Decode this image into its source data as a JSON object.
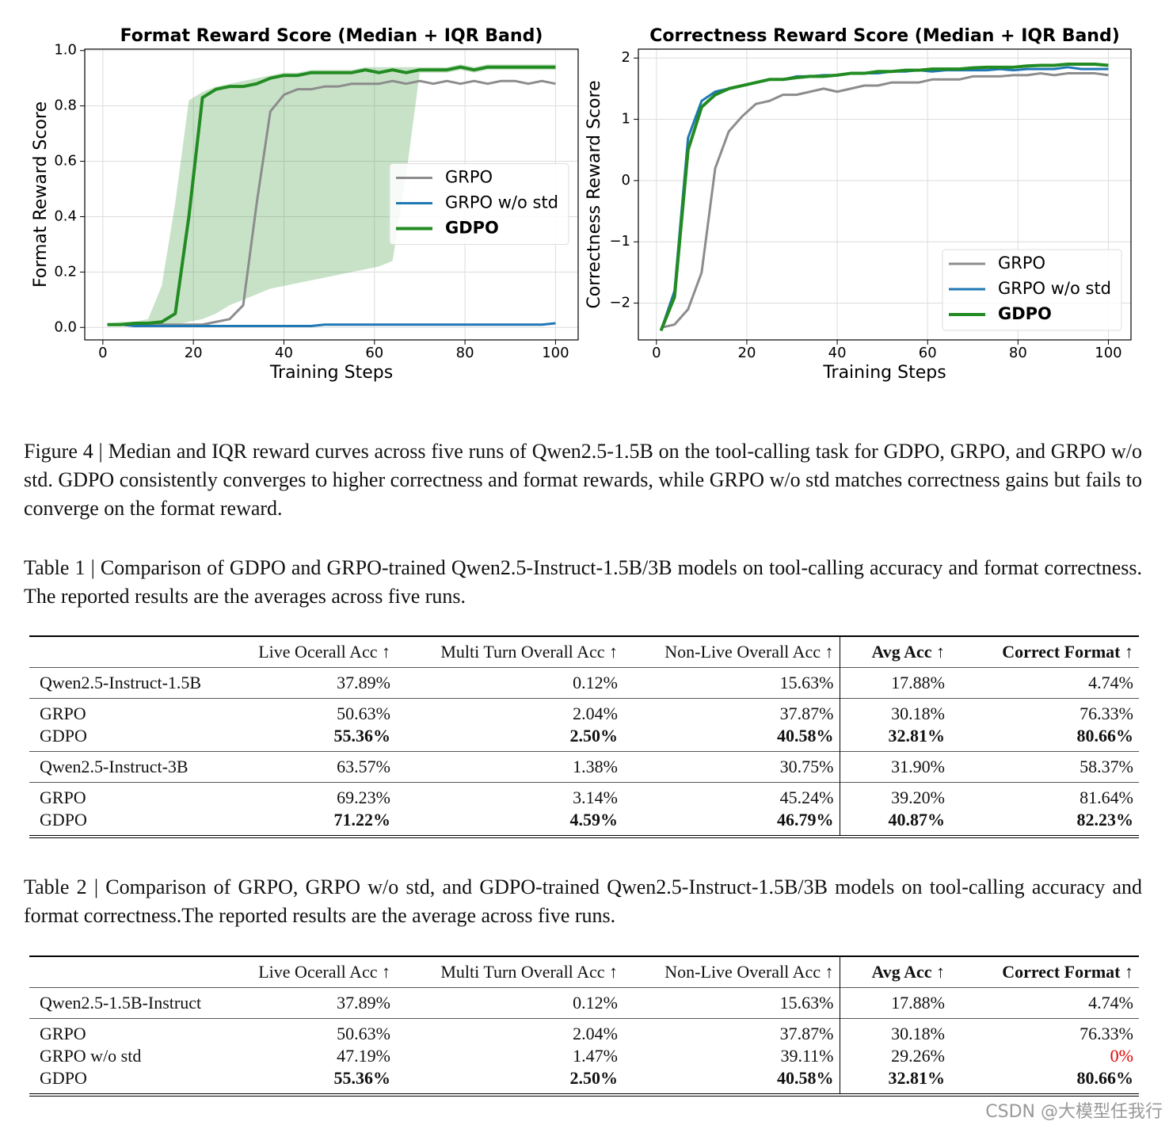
{
  "chart_data": [
    {
      "type": "line",
      "title": "Format Reward Score (Median + IQR Band)",
      "x_label": "Training Steps",
      "y_label": "Format Reward Score",
      "xlim": [
        -4,
        105
      ],
      "ylim": [
        -0.045,
        1.005
      ],
      "xticks": [
        0,
        20,
        40,
        60,
        80,
        100
      ],
      "yticks": [
        {
          "value": 0,
          "label": "0.0"
        },
        {
          "value": 0.2,
          "label": "0.2"
        },
        {
          "value": 0.4,
          "label": "0.4"
        },
        {
          "value": 0.6,
          "label": "0.6"
        },
        {
          "value": 0.8,
          "label": "0.8"
        },
        {
          "value": 1,
          "label": "1.0"
        }
      ],
      "grid": true,
      "legend": "center right",
      "x": [
        1,
        4,
        7,
        10,
        13,
        16,
        19,
        22,
        25,
        28,
        31,
        34,
        37,
        40,
        43,
        46,
        49,
        52,
        55,
        58,
        61,
        64,
        67,
        70,
        73,
        76,
        79,
        82,
        85,
        88,
        91,
        94,
        97,
        100
      ],
      "series": [
        {
          "name": "GRPO",
          "color": "#8c8c8c",
          "values": [
            0.01,
            0.01,
            0.01,
            0.01,
            0.01,
            0.01,
            0.01,
            0.01,
            0.02,
            0.03,
            0.08,
            0.45,
            0.78,
            0.84,
            0.86,
            0.86,
            0.87,
            0.87,
            0.88,
            0.88,
            0.88,
            0.89,
            0.88,
            0.89,
            0.88,
            0.89,
            0.88,
            0.89,
            0.88,
            0.89,
            0.89,
            0.88,
            0.89,
            0.88
          ]
        },
        {
          "name": "GRPO w/o std",
          "color": "#1f77b4",
          "values": [
            0.01,
            0.01,
            0.005,
            0.005,
            0.005,
            0.005,
            0.005,
            0.005,
            0.005,
            0.005,
            0.005,
            0.005,
            0.005,
            0.005,
            0.005,
            0.005,
            0.01,
            0.01,
            0.01,
            0.01,
            0.01,
            0.01,
            0.01,
            0.01,
            0.01,
            0.01,
            0.01,
            0.01,
            0.01,
            0.01,
            0.01,
            0.01,
            0.01,
            0.015
          ]
        },
        {
          "name": "GDPO",
          "color": "#228b22",
          "values": [
            0.01,
            0.01,
            0.015,
            0.015,
            0.02,
            0.05,
            0.4,
            0.83,
            0.86,
            0.87,
            0.87,
            0.88,
            0.9,
            0.91,
            0.91,
            0.92,
            0.92,
            0.92,
            0.92,
            0.93,
            0.92,
            0.93,
            0.92,
            0.93,
            0.93,
            0.93,
            0.94,
            0.93,
            0.94,
            0.94,
            0.94,
            0.94,
            0.94,
            0.94
          ],
          "band": {
            "upper": [
              0.015,
              0.02,
              0.02,
              0.03,
              0.15,
              0.45,
              0.82,
              0.85,
              0.87,
              0.88,
              0.89,
              0.9,
              0.91,
              0.92,
              0.92,
              0.93,
              0.93,
              0.93,
              0.93,
              0.94,
              0.94,
              0.94,
              0.94,
              0.94,
              0.94,
              0.94,
              0.95,
              0.94,
              0.95,
              0.95,
              0.95,
              0.95,
              0.95,
              0.95
            ],
            "lower": [
              0.005,
              0.005,
              0.005,
              0.01,
              0.01,
              0.01,
              0.02,
              0.03,
              0.05,
              0.08,
              0.1,
              0.12,
              0.14,
              0.15,
              0.16,
              0.17,
              0.18,
              0.19,
              0.2,
              0.21,
              0.22,
              0.24,
              0.55,
              0.92,
              0.92,
              0.92,
              0.93,
              0.92,
              0.93,
              0.93,
              0.93,
              0.93,
              0.93,
              0.93
            ]
          }
        }
      ]
    },
    {
      "type": "line",
      "title": "Correctness Reward Score (Median + IQR Band)",
      "x_label": "Training Steps",
      "y_label": "Correctness Reward Score",
      "xlim": [
        -4,
        105
      ],
      "ylim": [
        -2.6,
        2.145
      ],
      "xticks": [
        0,
        20,
        40,
        60,
        80,
        100
      ],
      "yticks": [
        {
          "value": -2,
          "label": "−2"
        },
        {
          "value": -1,
          "label": "−1"
        },
        0,
        1,
        2
      ],
      "grid": true,
      "legend": "lower right",
      "x": [
        1,
        4,
        7,
        10,
        13,
        16,
        19,
        22,
        25,
        28,
        31,
        34,
        37,
        40,
        43,
        46,
        49,
        52,
        55,
        58,
        61,
        64,
        67,
        70,
        73,
        76,
        79,
        82,
        85,
        88,
        91,
        94,
        97,
        100
      ],
      "series": [
        {
          "name": "GRPO",
          "color": "#8c8c8c",
          "values": [
            -2.4,
            -2.35,
            -2.1,
            -1.5,
            0.2,
            0.8,
            1.05,
            1.25,
            1.3,
            1.4,
            1.4,
            1.45,
            1.5,
            1.45,
            1.5,
            1.55,
            1.55,
            1.6,
            1.6,
            1.6,
            1.65,
            1.65,
            1.65,
            1.7,
            1.7,
            1.7,
            1.72,
            1.72,
            1.75,
            1.72,
            1.75,
            1.75,
            1.75,
            1.72
          ]
        },
        {
          "name": "GRPO w/o std",
          "color": "#1f77b4",
          "values": [
            -2.45,
            -1.8,
            0.7,
            1.3,
            1.45,
            1.5,
            1.55,
            1.6,
            1.65,
            1.65,
            1.7,
            1.7,
            1.72,
            1.72,
            1.75,
            1.75,
            1.75,
            1.78,
            1.78,
            1.8,
            1.78,
            1.8,
            1.8,
            1.8,
            1.8,
            1.82,
            1.8,
            1.82,
            1.82,
            1.82,
            1.85,
            1.82,
            1.82,
            1.82
          ]
        },
        {
          "name": "GDPO",
          "color": "#228b22",
          "values": [
            -2.45,
            -1.9,
            0.5,
            1.2,
            1.4,
            1.5,
            1.55,
            1.6,
            1.65,
            1.65,
            1.68,
            1.7,
            1.7,
            1.72,
            1.75,
            1.75,
            1.78,
            1.78,
            1.8,
            1.8,
            1.82,
            1.82,
            1.82,
            1.84,
            1.85,
            1.85,
            1.85,
            1.87,
            1.88,
            1.88,
            1.9,
            1.9,
            1.9,
            1.88
          ]
        }
      ]
    }
  ],
  "figure_caption": "Figure 4 | Median and IQR reward curves across five runs of Qwen2.5-1.5B on the tool-calling task for GDPO, GRPO, and GRPO w/o std. GDPO consistently converges to higher correctness and format rewards, while GRPO w/o std matches correctness gains but fails to converge on the format reward.",
  "table1": {
    "caption": "Table 1 | Comparison of GDPO and GRPO-trained Qwen2.5-Instruct-1.5B/3B models on tool-calling accuracy and format correctness. The reported results are the averages across five runs.",
    "header": [
      "Live Ocerall Acc ↑",
      "Multi Turn Overall Acc ↑",
      "Non-Live Overall Acc ↑",
      "Avg Acc ↑",
      "Correct Format ↑"
    ],
    "groups": [
      [
        [
          "Qwen2.5-Instruct-1.5B",
          "37.89%",
          "0.12%",
          "15.63%",
          "17.88%",
          "4.74%"
        ]
      ],
      [
        [
          "GRPO",
          "50.63%",
          "2.04%",
          "37.87%",
          "30.18%",
          "76.33%"
        ],
        [
          "GDPO",
          "55.36%",
          "2.50%",
          "40.58%",
          "32.81%",
          "80.66%"
        ]
      ],
      [
        [
          "Qwen2.5-Instruct-3B",
          "63.57%",
          "1.38%",
          "30.75%",
          "31.90%",
          "58.37%"
        ]
      ],
      [
        [
          "GRPO",
          "69.23%",
          "3.14%",
          "45.24%",
          "39.20%",
          "81.64%"
        ],
        [
          "GDPO",
          "71.22%",
          "4.59%",
          "46.79%",
          "40.87%",
          "82.23%"
        ]
      ]
    ]
  },
  "table2": {
    "caption": "Table 2 | Comparison of GRPO, GRPO w/o std, and GDPO-trained Qwen2.5-Instruct-1.5B/3B models on tool-calling accuracy and format correctness.The reported results are the average across five runs.",
    "header": [
      "Live Ocerall Acc ↑",
      "Multi Turn Overall Acc ↑",
      "Non-Live Overall Acc ↑",
      "Avg Acc ↑",
      "Correct Format ↑"
    ],
    "groups": [
      [
        [
          "Qwen2.5-1.5B-Instruct",
          "37.89%",
          "0.12%",
          "15.63%",
          "17.88%",
          "4.74%"
        ]
      ],
      [
        [
          "GRPO",
          "50.63%",
          "2.04%",
          "37.87%",
          "30.18%",
          "76.33%"
        ],
        [
          "GRPO w/o std",
          "47.19%",
          "1.47%",
          "39.11%",
          "29.26%",
          "0%"
        ],
        [
          "GDPO",
          "55.36%",
          "2.50%",
          "40.58%",
          "32.81%",
          "80.66%"
        ]
      ]
    ]
  },
  "watermark": "CSDN @大模型任我行"
}
